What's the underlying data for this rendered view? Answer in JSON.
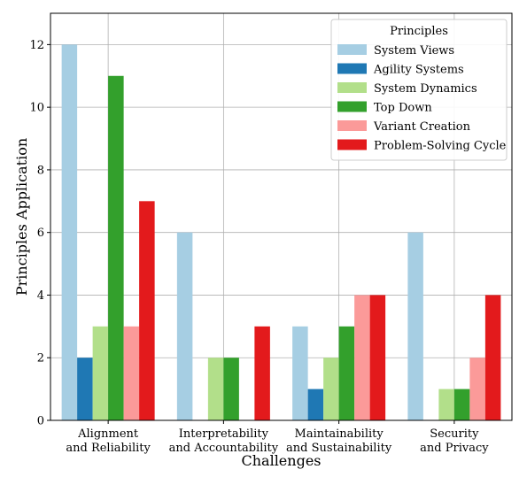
{
  "chart_data": {
    "type": "bar",
    "title": "",
    "xlabel": "Challenges",
    "ylabel": "Principles Application",
    "ylim": [
      0,
      13
    ],
    "yticks": [
      0,
      2,
      4,
      6,
      8,
      10,
      12
    ],
    "grid": true,
    "legend_title": "Principles",
    "legend_position": "top-right",
    "categories": [
      [
        "Alignment",
        "and Reliability"
      ],
      [
        "Interpretability",
        "and Accountability"
      ],
      [
        "Maintainability",
        "and Sustainability"
      ],
      [
        "Security",
        "and Privacy"
      ]
    ],
    "series": [
      {
        "name": "System Views",
        "color": "#a6cee3",
        "values": [
          12,
          6,
          3,
          6
        ]
      },
      {
        "name": "Agility Systems",
        "color": "#1f78b4",
        "values": [
          2,
          0,
          1,
          0
        ]
      },
      {
        "name": "System Dynamics",
        "color": "#b2df8a",
        "values": [
          3,
          2,
          2,
          1
        ]
      },
      {
        "name": "Top Down",
        "color": "#33a02c",
        "values": [
          11,
          2,
          3,
          1
        ]
      },
      {
        "name": "Variant Creation",
        "color": "#fb9a99",
        "values": [
          3,
          0,
          4,
          2
        ]
      },
      {
        "name": "Problem-Solving Cycle",
        "color": "#e31a1c",
        "values": [
          7,
          3,
          4,
          4
        ]
      }
    ]
  }
}
